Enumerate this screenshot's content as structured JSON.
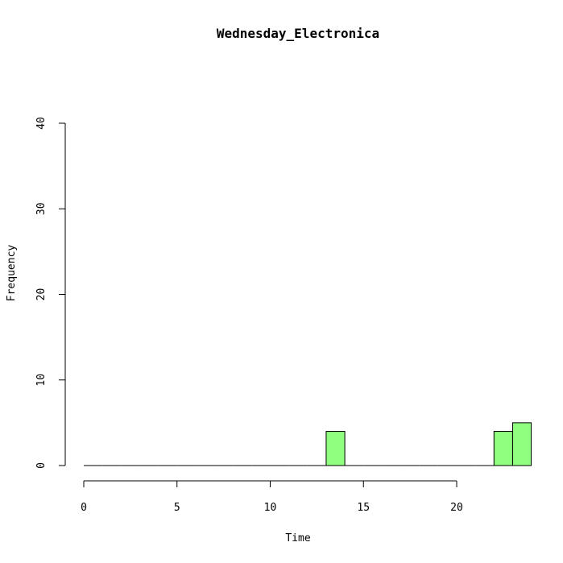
{
  "chart_data": {
    "type": "bar",
    "title": "Wednesday_Electronica",
    "xlabel": "Time",
    "ylabel": "Frequency",
    "xlim": [
      0,
      24
    ],
    "ylim": [
      0,
      40
    ],
    "x_ticks": [
      0,
      5,
      10,
      15,
      20
    ],
    "y_ticks": [
      0,
      10,
      20,
      30,
      40
    ],
    "bin_width": 1,
    "bins": [
      {
        "start": 0,
        "end": 1,
        "count": 0
      },
      {
        "start": 1,
        "end": 2,
        "count": 0
      },
      {
        "start": 2,
        "end": 3,
        "count": 0
      },
      {
        "start": 3,
        "end": 4,
        "count": 0
      },
      {
        "start": 4,
        "end": 5,
        "count": 0
      },
      {
        "start": 5,
        "end": 6,
        "count": 0
      },
      {
        "start": 6,
        "end": 7,
        "count": 0
      },
      {
        "start": 7,
        "end": 8,
        "count": 0
      },
      {
        "start": 8,
        "end": 9,
        "count": 0
      },
      {
        "start": 9,
        "end": 10,
        "count": 0
      },
      {
        "start": 10,
        "end": 11,
        "count": 0
      },
      {
        "start": 11,
        "end": 12,
        "count": 0
      },
      {
        "start": 12,
        "end": 13,
        "count": 0
      },
      {
        "start": 13,
        "end": 14,
        "count": 4
      },
      {
        "start": 14,
        "end": 15,
        "count": 0
      },
      {
        "start": 15,
        "end": 16,
        "count": 0
      },
      {
        "start": 16,
        "end": 17,
        "count": 0
      },
      {
        "start": 17,
        "end": 18,
        "count": 0
      },
      {
        "start": 18,
        "end": 19,
        "count": 0
      },
      {
        "start": 19,
        "end": 20,
        "count": 0
      },
      {
        "start": 20,
        "end": 21,
        "count": 0
      },
      {
        "start": 21,
        "end": 22,
        "count": 0
      },
      {
        "start": 22,
        "end": 23,
        "count": 4
      },
      {
        "start": 23,
        "end": 24,
        "count": 5
      }
    ],
    "bar_color": "#90ff80",
    "grid": false
  }
}
